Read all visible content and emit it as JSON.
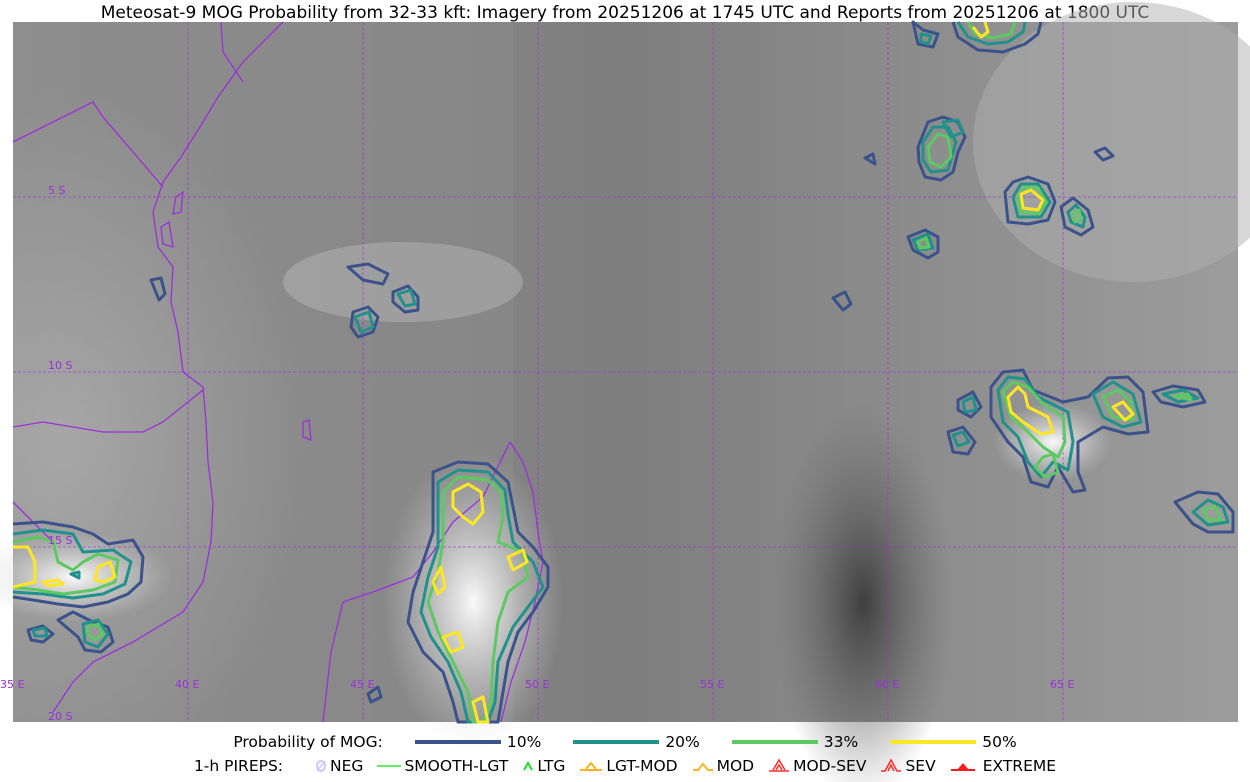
{
  "title": "Meteosat-9 MOG Probability from 32-33 kft: Imagery from 20251206 at 1745 UTC and Reports from 20251206 at 1800 UTC",
  "map": {
    "lon_labels": [
      "35 E",
      "40 E",
      "45 E",
      "50 E",
      "55 E",
      "60 E",
      "65 E"
    ],
    "lat_labels": [
      "5 S",
      "10 S",
      "15 S",
      "20 S"
    ],
    "grid_color": "#9b30d9",
    "coast_color": "#9b30d9"
  },
  "legend": {
    "probability_label": "Probability of MOG:",
    "probability_levels": [
      {
        "label": "10%",
        "color": "#3b528b"
      },
      {
        "label": "20%",
        "color": "#21918c"
      },
      {
        "label": "33%",
        "color": "#5ec962"
      },
      {
        "label": "50%",
        "color": "#fde725"
      }
    ],
    "pireps_label": "1-h PIREPS:",
    "pireps": [
      {
        "label": "NEG",
        "icon": "neg-icon",
        "color": "#c8c8ff"
      },
      {
        "label": "SMOOTH-LGT",
        "icon": "line-icon",
        "color": "#2ee82e"
      },
      {
        "label": "LTG",
        "icon": "caret-icon",
        "color": "#22dd22"
      },
      {
        "label": "LGT-MOD",
        "icon": "caret-bar-icon",
        "color": "#ffb020"
      },
      {
        "label": "MOD",
        "icon": "caret-icon",
        "color": "#ffb020"
      },
      {
        "label": "MOD-SEV",
        "icon": "double-caret-bar-icon",
        "color": "#ff2a2a"
      },
      {
        "label": "SEV",
        "icon": "double-caret-icon",
        "color": "#ff2a2a"
      },
      {
        "label": "EXTREME",
        "icon": "filled-triangle-icon",
        "color": "#ff1a1a"
      }
    ]
  }
}
